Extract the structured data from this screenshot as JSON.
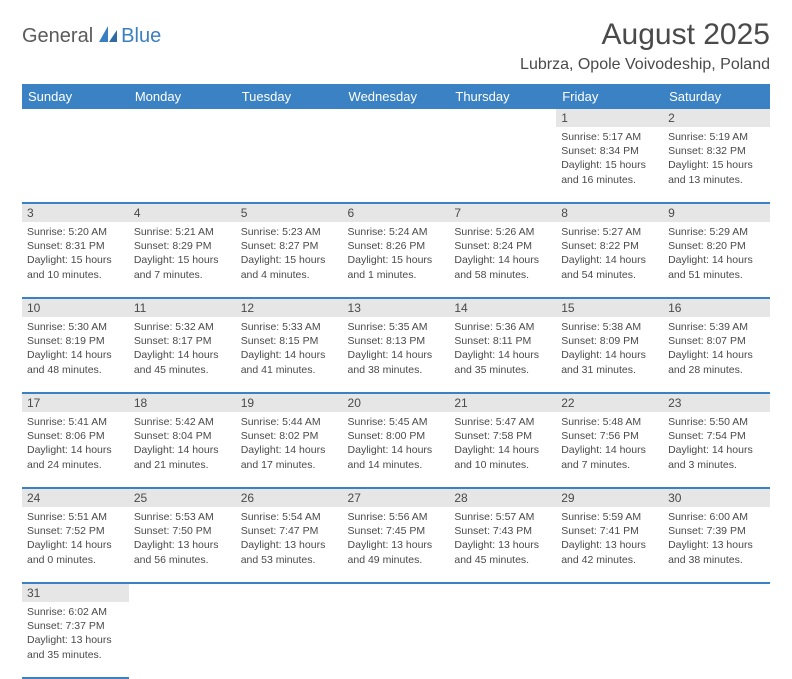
{
  "logo": {
    "part1": "General",
    "part2": "Blue"
  },
  "title": "August 2025",
  "location": "Lubrza, Opole Voivodeship, Poland",
  "colors": {
    "header_bg": "#3a82c4",
    "header_text": "#ffffff",
    "daynum_bg": "#e6e6e6",
    "border": "#3a82c4",
    "text": "#4a4a4a",
    "logo_blue": "#3a7fbf"
  },
  "fonts": {
    "title_size": 30,
    "location_size": 16,
    "dow_size": 13,
    "daynum_size": 12,
    "cell_size": 10.5
  },
  "dow": [
    "Sunday",
    "Monday",
    "Tuesday",
    "Wednesday",
    "Thursday",
    "Friday",
    "Saturday"
  ],
  "weeks": [
    {
      "days": [
        null,
        null,
        null,
        null,
        null,
        {
          "n": "1",
          "sunrise": "5:17 AM",
          "sunset": "8:34 PM",
          "day_h": "15",
          "day_m": "16"
        },
        {
          "n": "2",
          "sunrise": "5:19 AM",
          "sunset": "8:32 PM",
          "day_h": "15",
          "day_m": "13"
        }
      ]
    },
    {
      "days": [
        {
          "n": "3",
          "sunrise": "5:20 AM",
          "sunset": "8:31 PM",
          "day_h": "15",
          "day_m": "10"
        },
        {
          "n": "4",
          "sunrise": "5:21 AM",
          "sunset": "8:29 PM",
          "day_h": "15",
          "day_m": "7"
        },
        {
          "n": "5",
          "sunrise": "5:23 AM",
          "sunset": "8:27 PM",
          "day_h": "15",
          "day_m": "4"
        },
        {
          "n": "6",
          "sunrise": "5:24 AM",
          "sunset": "8:26 PM",
          "day_h": "15",
          "day_m": "1"
        },
        {
          "n": "7",
          "sunrise": "5:26 AM",
          "sunset": "8:24 PM",
          "day_h": "14",
          "day_m": "58"
        },
        {
          "n": "8",
          "sunrise": "5:27 AM",
          "sunset": "8:22 PM",
          "day_h": "14",
          "day_m": "54"
        },
        {
          "n": "9",
          "sunrise": "5:29 AM",
          "sunset": "8:20 PM",
          "day_h": "14",
          "day_m": "51"
        }
      ]
    },
    {
      "days": [
        {
          "n": "10",
          "sunrise": "5:30 AM",
          "sunset": "8:19 PM",
          "day_h": "14",
          "day_m": "48"
        },
        {
          "n": "11",
          "sunrise": "5:32 AM",
          "sunset": "8:17 PM",
          "day_h": "14",
          "day_m": "45"
        },
        {
          "n": "12",
          "sunrise": "5:33 AM",
          "sunset": "8:15 PM",
          "day_h": "14",
          "day_m": "41"
        },
        {
          "n": "13",
          "sunrise": "5:35 AM",
          "sunset": "8:13 PM",
          "day_h": "14",
          "day_m": "38"
        },
        {
          "n": "14",
          "sunrise": "5:36 AM",
          "sunset": "8:11 PM",
          "day_h": "14",
          "day_m": "35"
        },
        {
          "n": "15",
          "sunrise": "5:38 AM",
          "sunset": "8:09 PM",
          "day_h": "14",
          "day_m": "31"
        },
        {
          "n": "16",
          "sunrise": "5:39 AM",
          "sunset": "8:07 PM",
          "day_h": "14",
          "day_m": "28"
        }
      ]
    },
    {
      "days": [
        {
          "n": "17",
          "sunrise": "5:41 AM",
          "sunset": "8:06 PM",
          "day_h": "14",
          "day_m": "24"
        },
        {
          "n": "18",
          "sunrise": "5:42 AM",
          "sunset": "8:04 PM",
          "day_h": "14",
          "day_m": "21"
        },
        {
          "n": "19",
          "sunrise": "5:44 AM",
          "sunset": "8:02 PM",
          "day_h": "14",
          "day_m": "17"
        },
        {
          "n": "20",
          "sunrise": "5:45 AM",
          "sunset": "8:00 PM",
          "day_h": "14",
          "day_m": "14"
        },
        {
          "n": "21",
          "sunrise": "5:47 AM",
          "sunset": "7:58 PM",
          "day_h": "14",
          "day_m": "10"
        },
        {
          "n": "22",
          "sunrise": "5:48 AM",
          "sunset": "7:56 PM",
          "day_h": "14",
          "day_m": "7"
        },
        {
          "n": "23",
          "sunrise": "5:50 AM",
          "sunset": "7:54 PM",
          "day_h": "14",
          "day_m": "3"
        }
      ]
    },
    {
      "days": [
        {
          "n": "24",
          "sunrise": "5:51 AM",
          "sunset": "7:52 PM",
          "day_h": "14",
          "day_m": "0"
        },
        {
          "n": "25",
          "sunrise": "5:53 AM",
          "sunset": "7:50 PM",
          "day_h": "13",
          "day_m": "56"
        },
        {
          "n": "26",
          "sunrise": "5:54 AM",
          "sunset": "7:47 PM",
          "day_h": "13",
          "day_m": "53"
        },
        {
          "n": "27",
          "sunrise": "5:56 AM",
          "sunset": "7:45 PM",
          "day_h": "13",
          "day_m": "49"
        },
        {
          "n": "28",
          "sunrise": "5:57 AM",
          "sunset": "7:43 PM",
          "day_h": "13",
          "day_m": "45"
        },
        {
          "n": "29",
          "sunrise": "5:59 AM",
          "sunset": "7:41 PM",
          "day_h": "13",
          "day_m": "42"
        },
        {
          "n": "30",
          "sunrise": "6:00 AM",
          "sunset": "7:39 PM",
          "day_h": "13",
          "day_m": "38"
        }
      ]
    },
    {
      "days": [
        {
          "n": "31",
          "sunrise": "6:02 AM",
          "sunset": "7:37 PM",
          "day_h": "13",
          "day_m": "35"
        },
        null,
        null,
        null,
        null,
        null,
        null
      ]
    }
  ]
}
